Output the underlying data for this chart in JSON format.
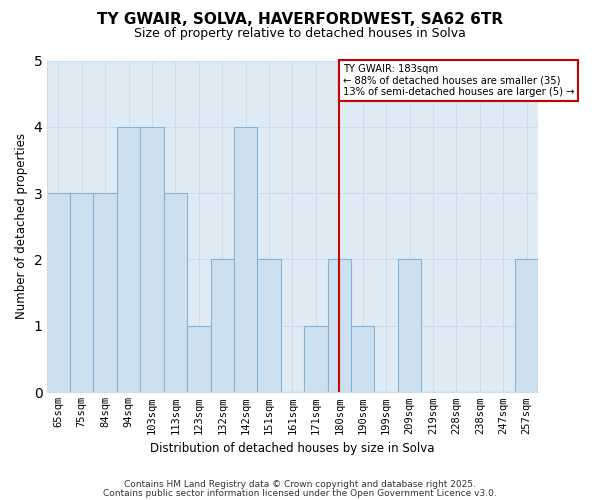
{
  "title_line1": "TY GWAIR, SOLVA, HAVERFORDWEST, SA62 6TR",
  "title_line2": "Size of property relative to detached houses in Solva",
  "xlabel": "Distribution of detached houses by size in Solva",
  "ylabel": "Number of detached properties",
  "bar_labels": [
    "65sqm",
    "75sqm",
    "84sqm",
    "94sqm",
    "103sqm",
    "113sqm",
    "123sqm",
    "132sqm",
    "142sqm",
    "151sqm",
    "161sqm",
    "171sqm",
    "180sqm",
    "190sqm",
    "199sqm",
    "209sqm",
    "219sqm",
    "228sqm",
    "238sqm",
    "247sqm",
    "257sqm"
  ],
  "bar_values": [
    3,
    3,
    3,
    4,
    4,
    3,
    1,
    2,
    4,
    2,
    0,
    1,
    2,
    1,
    0,
    2,
    0,
    0,
    0,
    0,
    2
  ],
  "bar_color": "#cde0f0",
  "bar_edge_color": "#8ab4d4",
  "vline_x_label": "180sqm",
  "vline_color": "#cc0000",
  "annotation_title": "TY GWAIR: 183sqm",
  "annotation_line1": "← 88% of detached houses are smaller (35)",
  "annotation_line2": "13% of semi-detached houses are larger (5) →",
  "annotation_box_color": "#ffffff",
  "annotation_box_edge_color": "#cc0000",
  "ylim": [
    0,
    5
  ],
  "yticks": [
    0,
    1,
    2,
    3,
    4,
    5
  ],
  "grid_color": "#ccddee",
  "background_color": "#ffffff",
  "plot_bg_color": "#deeaf4",
  "footer_line1": "Contains HM Land Registry data © Crown copyright and database right 2025.",
  "footer_line2": "Contains public sector information licensed under the Open Government Licence v3.0."
}
